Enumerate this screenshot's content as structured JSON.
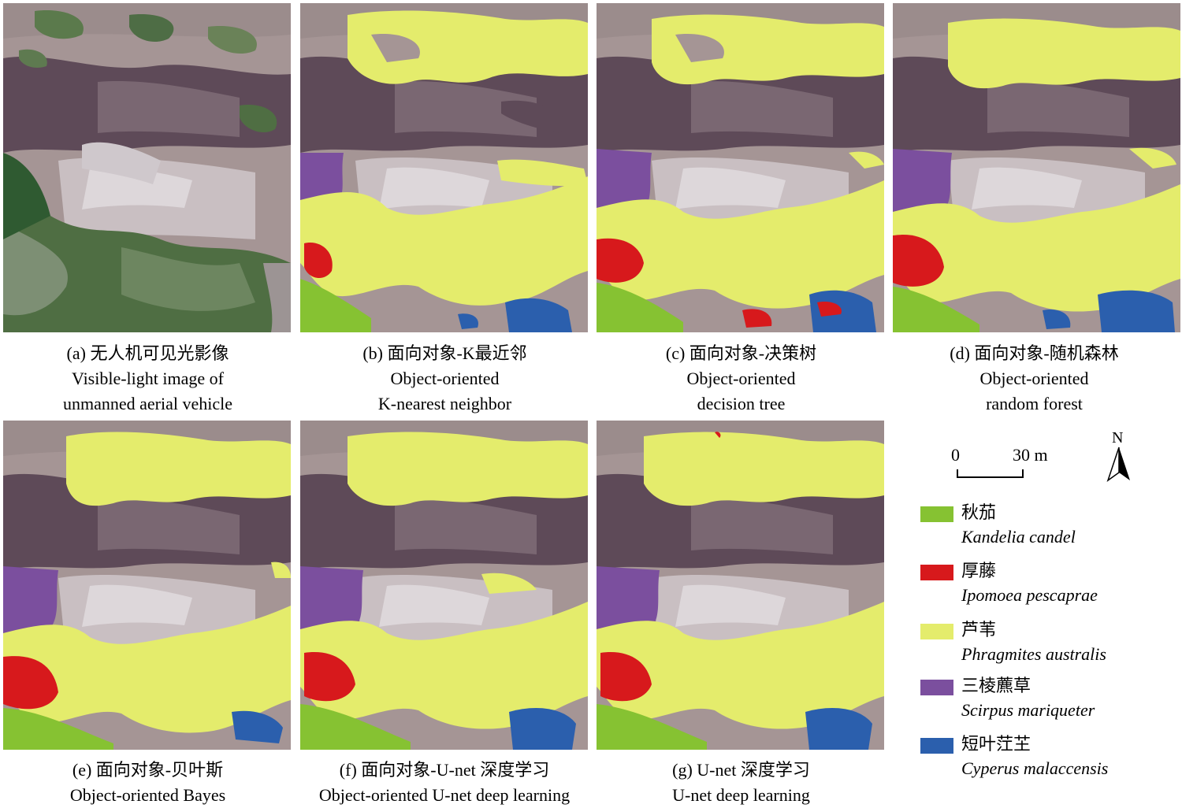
{
  "panels": [
    {
      "id": "a",
      "line1": "(a) 无人机可见光影像",
      "line2": "Visible-light image of",
      "line3": "unmanned aerial vehicle"
    },
    {
      "id": "b",
      "line1": "(b) 面向对象-K最近邻",
      "line2": "Object-oriented",
      "line3": "K-nearest neighbor"
    },
    {
      "id": "c",
      "line1": "(c) 面向对象-决策树",
      "line2": "Object-oriented",
      "line3": "decision tree"
    },
    {
      "id": "d",
      "line1": "(d) 面向对象-随机森林",
      "line2": "Object-oriented",
      "line3": "random forest"
    },
    {
      "id": "e",
      "line1": "(e) 面向对象-贝叶斯",
      "line2": "Object-oriented Bayes"
    },
    {
      "id": "f",
      "line1": "(f) 面向对象-U-net 深度学习",
      "line2": "Object-oriented U-net deep learning"
    },
    {
      "id": "g",
      "line1": "(g) U-net 深度学习",
      "line2": "U-net deep learning"
    }
  ],
  "scale_bar": {
    "start": "0",
    "end": "30 m"
  },
  "north_arrow": {
    "label": "N"
  },
  "legend": [
    {
      "zh": "秋茄",
      "latin": "Kandelia candel",
      "color": "#86c232"
    },
    {
      "zh": "厚藤",
      "latin": "Ipomoea pescaprae",
      "color": "#d7191c"
    },
    {
      "zh": "芦苇",
      "latin": "Phragmites australis",
      "color": "#e4ec6c"
    },
    {
      "zh": "三棱藨草",
      "latin": "Scirpus mariqueter",
      "color": "#7b4f9e"
    },
    {
      "zh": "短叶茳芏",
      "latin": "Cyperus malaccensis",
      "color": "#2b5fad"
    }
  ],
  "colors": {
    "background_mud": "#a89a9a",
    "water": "#5e4a58",
    "bare_sand": "#d8d2d4",
    "vegetation_photo": "#4f6e43"
  }
}
